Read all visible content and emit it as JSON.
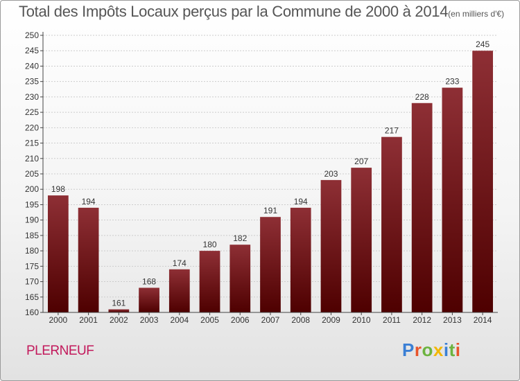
{
  "title": "Total des Impôts Locaux perçus par la Commune de 2000 à 2014",
  "title_unit": "(en milliers d'€)",
  "commune": "PLERNEUF",
  "logo": {
    "text": "Proxiti",
    "letter_colors": [
      "#3a7fd5",
      "#e8542a",
      "#6cb33f",
      "#f2b705",
      "#3a7fd5",
      "#6cb33f",
      "#e8542a"
    ]
  },
  "colors": {
    "bar_top": "#8e2f35",
    "bar_bottom": "#4e0000",
    "axis": "#444444",
    "grid": "#cccccc",
    "text": "#333333",
    "commune": "#c2185b"
  },
  "chart_data": {
    "type": "bar",
    "title": "Total des Impôts Locaux perçus par la Commune de 2000 à 2014",
    "xlabel": "",
    "ylabel": "",
    "ylim": [
      160,
      250
    ],
    "ytick_step": 5,
    "grid": "horizontal",
    "categories": [
      "2000",
      "2001",
      "2002",
      "2003",
      "2004",
      "2005",
      "2006",
      "2007",
      "2008",
      "2009",
      "2010",
      "2011",
      "2012",
      "2013",
      "2014"
    ],
    "values": [
      198,
      194,
      161,
      168,
      174,
      180,
      182,
      191,
      194,
      203,
      207,
      217,
      228,
      233,
      245
    ]
  }
}
